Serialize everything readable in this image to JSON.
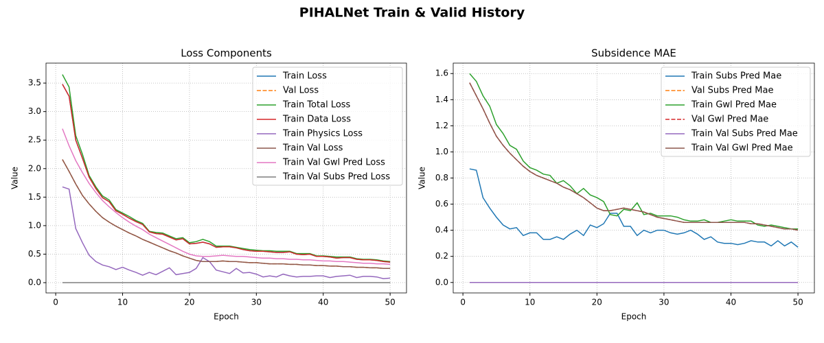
{
  "title": "PIHALNet Train & Valid History",
  "chart_data": [
    {
      "type": "line",
      "title": "Loss Components",
      "x_label": "Epoch",
      "y_label": "Value",
      "x": [
        1,
        2,
        3,
        4,
        5,
        6,
        7,
        8,
        9,
        10,
        11,
        12,
        13,
        14,
        15,
        16,
        17,
        18,
        19,
        20,
        21,
        22,
        23,
        24,
        25,
        26,
        27,
        28,
        29,
        30,
        31,
        32,
        33,
        34,
        35,
        36,
        37,
        38,
        39,
        40,
        41,
        42,
        43,
        44,
        45,
        46,
        47,
        48,
        49,
        50
      ],
      "xlim": [
        -1.45,
        52.45
      ],
      "xticks": [
        0,
        10,
        20,
        30,
        40,
        50
      ],
      "ylim": [
        -0.18,
        3.85
      ],
      "yticks": [
        {
          "value": 0,
          "label": "0.0"
        },
        0.5,
        {
          "value": 1,
          "label": "1.0"
        },
        1.5,
        {
          "value": 2,
          "label": "2.0"
        },
        2.5,
        {
          "value": 3,
          "label": "3.0"
        },
        3.5
      ],
      "grid": true,
      "legend": "upper right",
      "series": [
        {
          "name": "Train Loss",
          "color": "#1f77b4",
          "linestyle": "solid",
          "values": [
            3.48,
            3.27,
            2.5,
            2.18,
            1.85,
            1.65,
            1.49,
            1.42,
            1.26,
            1.2,
            1.13,
            1.07,
            1.02,
            0.89,
            0.86,
            0.85,
            0.8,
            0.75,
            0.77,
            0.68,
            0.69,
            0.71,
            0.68,
            0.62,
            0.63,
            0.63,
            0.61,
            0.58,
            0.56,
            0.55,
            0.55,
            0.54,
            0.53,
            0.53,
            0.54,
            0.5,
            0.49,
            0.5,
            0.46,
            0.46,
            0.45,
            0.43,
            0.44,
            0.44,
            0.41,
            0.4,
            0.4,
            0.39,
            0.37,
            0.36
          ]
        },
        {
          "name": "Val Loss",
          "color": "#ff7f0e",
          "linestyle": "dashed",
          "values": [
            2.16,
            1.95,
            1.73,
            1.53,
            1.38,
            1.25,
            1.14,
            1.06,
            0.99,
            0.93,
            0.87,
            0.82,
            0.76,
            0.71,
            0.66,
            0.61,
            0.56,
            0.52,
            0.47,
            0.43,
            0.39,
            0.37,
            0.37,
            0.37,
            0.38,
            0.37,
            0.37,
            0.36,
            0.35,
            0.35,
            0.34,
            0.33,
            0.33,
            0.33,
            0.32,
            0.32,
            0.31,
            0.31,
            0.3,
            0.3,
            0.29,
            0.29,
            0.28,
            0.28,
            0.27,
            0.27,
            0.26,
            0.26,
            0.25,
            0.25
          ]
        },
        {
          "name": "Train Total Loss",
          "color": "#2ca02c",
          "linestyle": "solid",
          "values": [
            3.65,
            3.43,
            2.58,
            2.25,
            1.88,
            1.68,
            1.52,
            1.45,
            1.28,
            1.22,
            1.16,
            1.09,
            1.04,
            0.9,
            0.88,
            0.87,
            0.82,
            0.77,
            0.79,
            0.7,
            0.72,
            0.76,
            0.72,
            0.64,
            0.64,
            0.64,
            0.62,
            0.6,
            0.58,
            0.57,
            0.56,
            0.56,
            0.55,
            0.55,
            0.55,
            0.51,
            0.51,
            0.51,
            0.47,
            0.47,
            0.46,
            0.45,
            0.45,
            0.45,
            0.42,
            0.41,
            0.41,
            0.4,
            0.38,
            0.37
          ]
        },
        {
          "name": "Train Data Loss",
          "color": "#d62728",
          "linestyle": "solid",
          "values": [
            3.48,
            3.27,
            2.5,
            2.18,
            1.85,
            1.65,
            1.49,
            1.42,
            1.26,
            1.2,
            1.13,
            1.07,
            1.02,
            0.89,
            0.86,
            0.85,
            0.8,
            0.75,
            0.77,
            0.68,
            0.69,
            0.71,
            0.68,
            0.62,
            0.63,
            0.63,
            0.61,
            0.58,
            0.56,
            0.55,
            0.55,
            0.54,
            0.53,
            0.53,
            0.54,
            0.5,
            0.49,
            0.5,
            0.46,
            0.46,
            0.45,
            0.43,
            0.44,
            0.44,
            0.41,
            0.4,
            0.4,
            0.39,
            0.37,
            0.36
          ]
        },
        {
          "name": "Train Physics Loss",
          "color": "#9467bd",
          "linestyle": "solid",
          "values": [
            1.68,
            1.64,
            0.95,
            0.7,
            0.48,
            0.37,
            0.31,
            0.28,
            0.23,
            0.27,
            0.22,
            0.18,
            0.13,
            0.18,
            0.14,
            0.2,
            0.26,
            0.14,
            0.16,
            0.18,
            0.25,
            0.44,
            0.37,
            0.22,
            0.19,
            0.16,
            0.25,
            0.17,
            0.18,
            0.15,
            0.1,
            0.12,
            0.1,
            0.15,
            0.12,
            0.1,
            0.11,
            0.11,
            0.12,
            0.12,
            0.09,
            0.11,
            0.12,
            0.13,
            0.09,
            0.11,
            0.11,
            0.1,
            0.07,
            0.08
          ]
        },
        {
          "name": "Train Val Loss",
          "color": "#8c564b",
          "linestyle": "solid",
          "values": [
            2.16,
            1.95,
            1.73,
            1.53,
            1.38,
            1.25,
            1.14,
            1.06,
            0.99,
            0.93,
            0.87,
            0.82,
            0.76,
            0.71,
            0.66,
            0.61,
            0.56,
            0.52,
            0.47,
            0.43,
            0.39,
            0.37,
            0.37,
            0.37,
            0.38,
            0.37,
            0.37,
            0.36,
            0.35,
            0.35,
            0.34,
            0.33,
            0.33,
            0.33,
            0.32,
            0.32,
            0.31,
            0.31,
            0.3,
            0.3,
            0.29,
            0.29,
            0.28,
            0.28,
            0.27,
            0.27,
            0.26,
            0.26,
            0.25,
            0.25
          ]
        },
        {
          "name": "Train Val Gwl Pred Loss",
          "color": "#e377c2",
          "linestyle": "solid",
          "values": [
            2.7,
            2.4,
            2.14,
            1.93,
            1.74,
            1.58,
            1.44,
            1.33,
            1.23,
            1.14,
            1.06,
            0.99,
            0.93,
            0.85,
            0.79,
            0.73,
            0.67,
            0.61,
            0.55,
            0.5,
            0.47,
            0.46,
            0.46,
            0.47,
            0.48,
            0.47,
            0.46,
            0.46,
            0.45,
            0.44,
            0.43,
            0.43,
            0.42,
            0.42,
            0.41,
            0.41,
            0.4,
            0.4,
            0.39,
            0.38,
            0.38,
            0.37,
            0.37,
            0.36,
            0.35,
            0.34,
            0.34,
            0.33,
            0.33,
            0.32
          ]
        },
        {
          "name": "Train Val Subs Pred Loss",
          "color": "#7f7f7f",
          "linestyle": "solid",
          "values": [
            0,
            0,
            0,
            0,
            0,
            0,
            0,
            0,
            0,
            0,
            0,
            0,
            0,
            0,
            0,
            0,
            0,
            0,
            0,
            0,
            0,
            0,
            0,
            0,
            0,
            0,
            0,
            0,
            0,
            0,
            0,
            0,
            0,
            0,
            0,
            0,
            0,
            0,
            0,
            0,
            0,
            0,
            0,
            0,
            0,
            0,
            0,
            0,
            0,
            0
          ]
        }
      ]
    },
    {
      "type": "line",
      "title": "Subsidence MAE",
      "x_label": "Epoch",
      "y_label": "Value",
      "x": [
        1,
        2,
        3,
        4,
        5,
        6,
        7,
        8,
        9,
        10,
        11,
        12,
        13,
        14,
        15,
        16,
        17,
        18,
        19,
        20,
        21,
        22,
        23,
        24,
        25,
        26,
        27,
        28,
        29,
        30,
        31,
        32,
        33,
        34,
        35,
        36,
        37,
        38,
        39,
        40,
        41,
        42,
        43,
        44,
        45,
        46,
        47,
        48,
        49,
        50
      ],
      "xlim": [
        -1.45,
        52.45
      ],
      "xticks": [
        0,
        10,
        20,
        30,
        40,
        50
      ],
      "ylim": [
        -0.08,
        1.68
      ],
      "yticks": [
        {
          "value": 0,
          "label": "0.0"
        },
        0.2,
        0.4,
        0.6,
        0.8,
        {
          "value": 1,
          "label": "1.0"
        },
        1.2,
        1.4,
        1.6
      ],
      "grid": true,
      "legend": "upper right",
      "series": [
        {
          "name": "Train Subs Pred Mae",
          "color": "#1f77b4",
          "linestyle": "solid",
          "values": [
            0.87,
            0.86,
            0.65,
            0.57,
            0.5,
            0.44,
            0.41,
            0.42,
            0.36,
            0.38,
            0.38,
            0.33,
            0.33,
            0.35,
            0.33,
            0.37,
            0.4,
            0.36,
            0.44,
            0.42,
            0.45,
            0.53,
            0.53,
            0.43,
            0.43,
            0.36,
            0.4,
            0.38,
            0.4,
            0.4,
            0.38,
            0.37,
            0.38,
            0.4,
            0.37,
            0.33,
            0.35,
            0.31,
            0.3,
            0.3,
            0.29,
            0.3,
            0.32,
            0.31,
            0.31,
            0.28,
            0.32,
            0.28,
            0.31,
            0.27
          ]
        },
        {
          "name": "Val Subs Pred Mae",
          "color": "#ff7f0e",
          "linestyle": "dashed",
          "values": [
            0,
            0,
            0,
            0,
            0,
            0,
            0,
            0,
            0,
            0,
            0,
            0,
            0,
            0,
            0,
            0,
            0,
            0,
            0,
            0,
            0,
            0,
            0,
            0,
            0,
            0,
            0,
            0,
            0,
            0,
            0,
            0,
            0,
            0,
            0,
            0,
            0,
            0,
            0,
            0,
            0,
            0,
            0,
            0,
            0,
            0,
            0,
            0,
            0,
            0
          ]
        },
        {
          "name": "Train Gwl Pred Mae",
          "color": "#2ca02c",
          "linestyle": "solid",
          "values": [
            1.6,
            1.54,
            1.43,
            1.35,
            1.21,
            1.14,
            1.05,
            1.02,
            0.93,
            0.88,
            0.86,
            0.83,
            0.82,
            0.76,
            0.78,
            0.74,
            0.68,
            0.72,
            0.67,
            0.65,
            0.62,
            0.52,
            0.51,
            0.56,
            0.55,
            0.61,
            0.52,
            0.53,
            0.51,
            0.51,
            0.51,
            0.5,
            0.48,
            0.47,
            0.47,
            0.48,
            0.46,
            0.46,
            0.47,
            0.48,
            0.47,
            0.47,
            0.47,
            0.44,
            0.43,
            0.44,
            0.43,
            0.42,
            0.41,
            0.41
          ]
        },
        {
          "name": "Val Gwl Pred Mae",
          "color": "#d62728",
          "linestyle": "dashed",
          "values": [
            1.53,
            1.43,
            1.33,
            1.22,
            1.12,
            1.05,
            0.99,
            0.94,
            0.89,
            0.85,
            0.82,
            0.8,
            0.78,
            0.76,
            0.73,
            0.71,
            0.68,
            0.65,
            0.61,
            0.57,
            0.55,
            0.55,
            0.56,
            0.57,
            0.56,
            0.55,
            0.54,
            0.52,
            0.5,
            0.49,
            0.48,
            0.47,
            0.46,
            0.46,
            0.46,
            0.46,
            0.46,
            0.46,
            0.46,
            0.46,
            0.46,
            0.46,
            0.45,
            0.45,
            0.44,
            0.43,
            0.42,
            0.41,
            0.41,
            0.4
          ]
        },
        {
          "name": "Train Val Subs Pred Mae",
          "color": "#9467bd",
          "linestyle": "solid",
          "values": [
            0,
            0,
            0,
            0,
            0,
            0,
            0,
            0,
            0,
            0,
            0,
            0,
            0,
            0,
            0,
            0,
            0,
            0,
            0,
            0,
            0,
            0,
            0,
            0,
            0,
            0,
            0,
            0,
            0,
            0,
            0,
            0,
            0,
            0,
            0,
            0,
            0,
            0,
            0,
            0,
            0,
            0,
            0,
            0,
            0,
            0,
            0,
            0,
            0,
            0
          ]
        },
        {
          "name": "Train Val Gwl Pred Mae",
          "color": "#8c564b",
          "linestyle": "solid",
          "values": [
            1.53,
            1.43,
            1.33,
            1.22,
            1.12,
            1.05,
            0.99,
            0.94,
            0.89,
            0.85,
            0.82,
            0.8,
            0.78,
            0.76,
            0.73,
            0.71,
            0.68,
            0.65,
            0.61,
            0.57,
            0.55,
            0.55,
            0.56,
            0.57,
            0.56,
            0.55,
            0.54,
            0.52,
            0.5,
            0.49,
            0.48,
            0.47,
            0.46,
            0.46,
            0.46,
            0.46,
            0.46,
            0.46,
            0.46,
            0.46,
            0.46,
            0.46,
            0.45,
            0.45,
            0.44,
            0.43,
            0.42,
            0.41,
            0.41,
            0.4
          ]
        }
      ]
    }
  ]
}
